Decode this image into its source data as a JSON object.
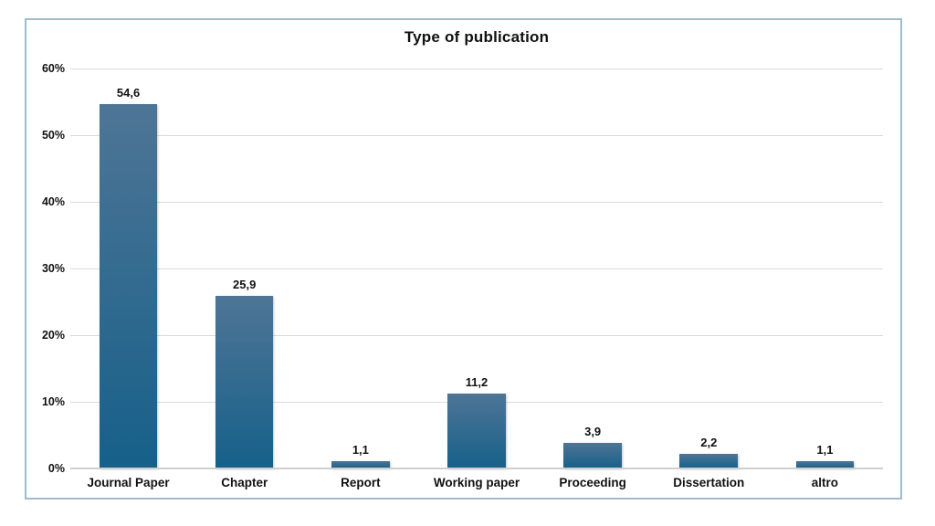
{
  "chart_data": {
    "type": "bar",
    "title": "Type of publication",
    "categories": [
      "Journal Paper",
      "Chapter",
      "Report",
      "Working paper",
      "Proceeding",
      "Dissertation",
      "altro"
    ],
    "values": [
      54.6,
      25.9,
      1.1,
      11.2,
      3.9,
      2.2,
      1.1
    ],
    "value_labels": [
      "54,6",
      "25,9",
      "1,1",
      "11,2",
      "3,9",
      "2,2",
      "1,1"
    ],
    "y_ticks_top_to_bottom": [
      "60%",
      "50%",
      "40%",
      "30%",
      "20%",
      "10%",
      "0%"
    ],
    "ylim": [
      0,
      60
    ],
    "xlabel": "",
    "ylabel": "",
    "grid": true,
    "legend": false,
    "decimal_separator": ",",
    "colors": {
      "frame_border": "#9dbdcc",
      "bar_top": "#4e7596",
      "bar_bottom": "#166089",
      "gridline": "#dadada",
      "axis_line": "#cfcfcf",
      "text": "#111111",
      "background": "#ffffff"
    }
  }
}
